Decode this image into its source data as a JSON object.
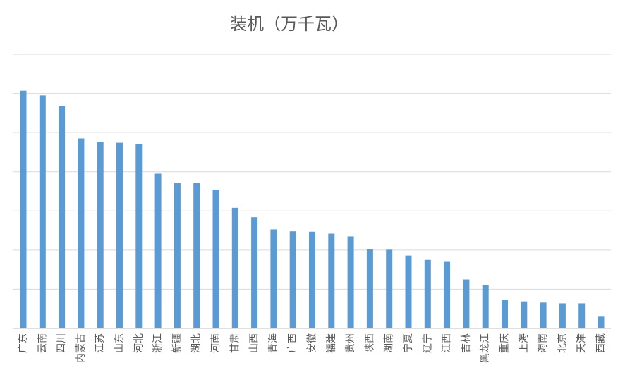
{
  "chart_data": {
    "type": "bar",
    "title": "装机（万千瓦）",
    "xlabel": "",
    "ylabel": "",
    "ylim": [
      0,
      7
    ],
    "y_gridlines": [
      0,
      1,
      2,
      3,
      4,
      5,
      6,
      7
    ],
    "grid": true,
    "legend": "none",
    "bar_color": "#5b9bd5",
    "categories": [
      "广东",
      "云南",
      "四川",
      "内蒙古",
      "江苏",
      "山东",
      "河北",
      "浙江",
      "新疆",
      "湖北",
      "河南",
      "甘肃",
      "山西",
      "青海",
      "广西",
      "安徽",
      "福建",
      "贵州",
      "陕西",
      "湖南",
      "宁夏",
      "辽宁",
      "江西",
      "吉林",
      "黑龙江",
      "重庆",
      "上海",
      "海南",
      "北京",
      "天津",
      "西藏"
    ],
    "values": [
      6.07,
      5.95,
      5.68,
      4.85,
      4.76,
      4.74,
      4.7,
      3.95,
      3.71,
      3.71,
      3.54,
      3.08,
      2.84,
      2.53,
      2.48,
      2.47,
      2.42,
      2.35,
      2.02,
      2.01,
      1.86,
      1.75,
      1.7,
      1.25,
      1.1,
      0.73,
      0.69,
      0.66,
      0.64,
      0.64,
      0.3
    ]
  }
}
